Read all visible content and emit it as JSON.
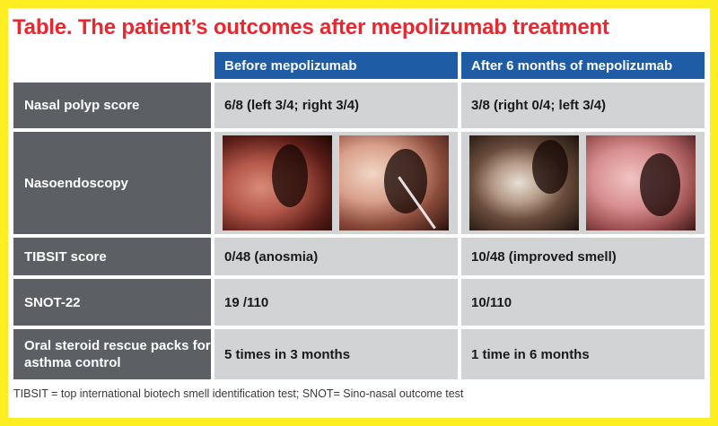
{
  "title": "Table. The patient’s outcomes after mepolizumab treatment",
  "table": {
    "headers": [
      "",
      "Before mepolizumab",
      "After 6 months of mepolizumab"
    ],
    "rows": [
      {
        "label": "Nasal polyp score",
        "before": "6/8 (left 3/4; right 3/4)",
        "after": "3/8 (right 0/4; left 3/4)"
      },
      {
        "label": "Nasoendoscopy",
        "before": "",
        "after": ""
      },
      {
        "label": "TIBSIT score",
        "before": "0/48 (anosmia)",
        "after": "10/48 (improved smell)"
      },
      {
        "label": "SNOT-22",
        "before": "19 /110",
        "after": "10/110"
      },
      {
        "label": "Oral steroid rescue packs for asthma control",
        "before": "5 times in 3 months",
        "after": "1 time in 6 months"
      }
    ]
  },
  "footnote": "TIBSIT = top international biotech smell identification test; SNOT= Sino-nasal outcome test",
  "colors": {
    "border": "#fcee21",
    "title": "#e8272f",
    "header": "#1f5ca6",
    "label_column": "#5c5f63",
    "cell": "#d2d3d5"
  }
}
